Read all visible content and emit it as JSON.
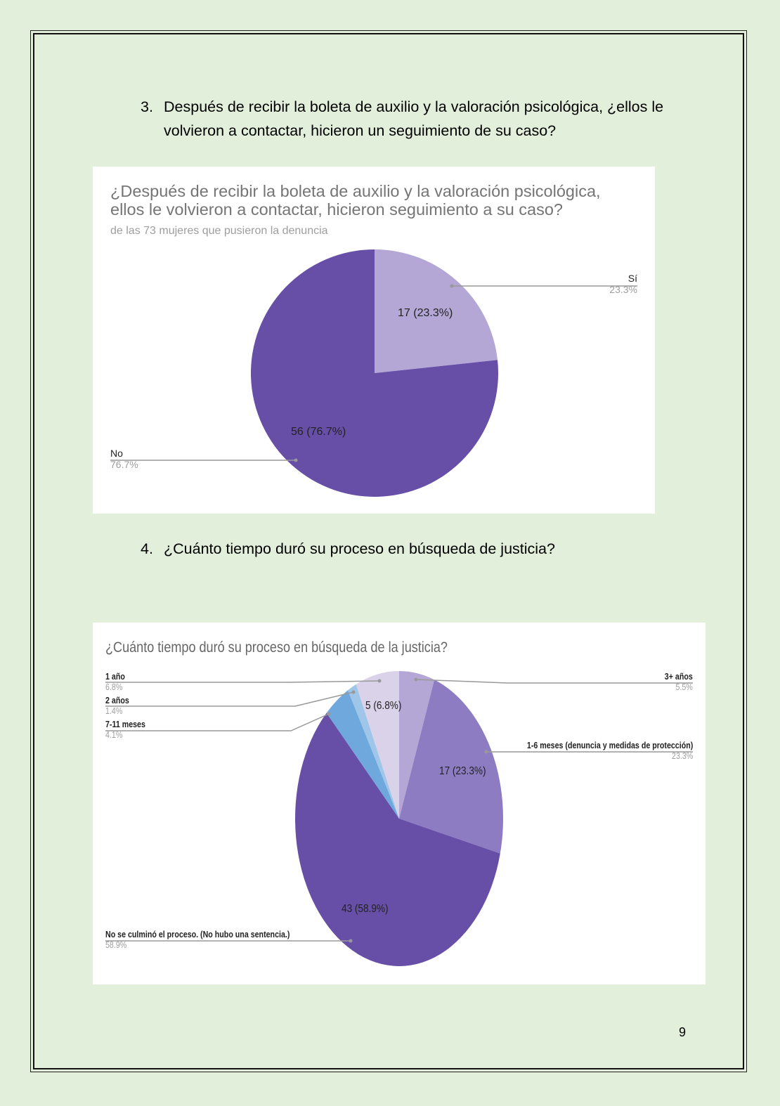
{
  "questions": [
    {
      "number": "3.",
      "text": "Después de recibir la boleta de auxilio y la valoración psicológica, ¿ellos le volvieron a contactar, hicieron un seguimiento de su caso?"
    },
    {
      "number": "4.",
      "text": "¿Cuánto tiempo duró su proceso en búsqueda de justicia?"
    }
  ],
  "page_number": "9",
  "chart_data": [
    {
      "type": "pie",
      "title_line1": "¿Después de recibir la boleta de auxilio y la valoración psicológica,",
      "title_line2": "ellos le volvieron a contactar, hicieron seguimiento a su caso?",
      "subtitle": "de las 73 mujeres que pusieron la denuncia",
      "slices": [
        {
          "label": "Sí",
          "value": 17,
          "percent": 23.3,
          "pct_label": "23.3%",
          "data_label": "17 (23.3%)",
          "color": "#b4a7d6"
        },
        {
          "label": "No",
          "value": 56,
          "percent": 76.7,
          "pct_label": "76.7%",
          "data_label": "56 (76.7%)",
          "color": "#674ea7"
        }
      ]
    },
    {
      "type": "pie",
      "title": "¿Cuánto tiempo duró su proceso en búsqueda de la justicia?",
      "slices": [
        {
          "label": "3+ años",
          "value": 4,
          "percent": 5.5,
          "pct_label": "5.5%",
          "color": "#b4a7d6"
        },
        {
          "label": "1-6 meses (denuncia y medidas de protección)",
          "value": 17,
          "percent": 23.3,
          "pct_label": "23.3%",
          "data_label": "17 (23.3%)",
          "color": "#8e7cc3"
        },
        {
          "label": "No se culminó el proceso. (No hubo una sentencia.)",
          "value": 43,
          "percent": 58.9,
          "pct_label": "58.9%",
          "data_label": "43 (58.9%)",
          "color": "#674ea7"
        },
        {
          "label": "7-11 meses",
          "value": 3,
          "percent": 4.1,
          "pct_label": "4.1%",
          "color": "#6fa8dc"
        },
        {
          "label": "2 años",
          "value": 1,
          "percent": 1.4,
          "pct_label": "1.4%",
          "color": "#9fc5e8"
        },
        {
          "label": "1 año",
          "value": 5,
          "percent": 6.8,
          "pct_label": "6.8%",
          "data_label": "5 (6.8%)",
          "color": "#d9d2e9"
        }
      ]
    }
  ]
}
